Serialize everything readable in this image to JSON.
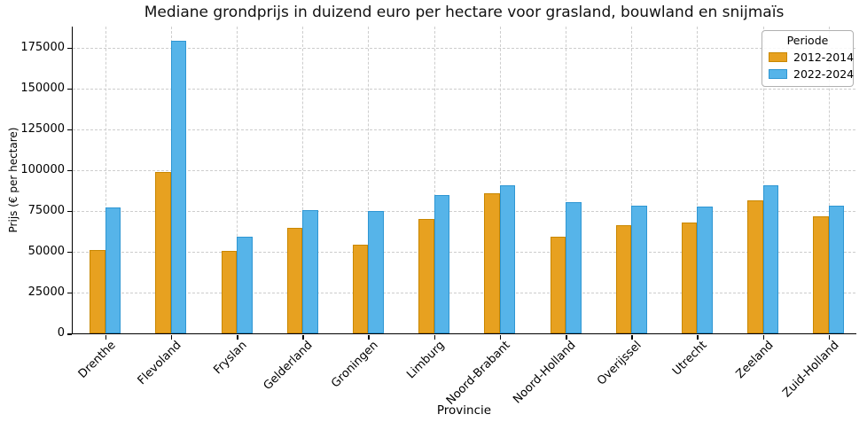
{
  "chart_data": {
    "type": "bar",
    "title": "Mediane grondprijs in duizend euro per hectare voor grasland, bouwland en snijmaïs",
    "xlabel": "Provincie",
    "ylabel": "Prijs (€ per hectare)",
    "categories": [
      "Drenthe",
      "Flevoland",
      "Fryslan",
      "Gelderland",
      "Groningen",
      "Limburg",
      "Noord-Brabant",
      "Noord-Holland",
      "Overijssel",
      "Utrecht",
      "Zeeland",
      "Zuid-Holland"
    ],
    "series": [
      {
        "name": "2012-2014",
        "color": "#E7A120",
        "edge_color": "#C98700",
        "values": [
          51000,
          99000,
          50500,
          64500,
          54500,
          70000,
          86000,
          59500,
          66500,
          68000,
          81500,
          71500
        ]
      },
      {
        "name": "2022-2024",
        "color": "#56B4E9",
        "edge_color": "#2E96D3",
        "values": [
          77000,
          179500,
          59000,
          75500,
          75000,
          85000,
          91000,
          80500,
          78000,
          77500,
          91000,
          78000
        ]
      }
    ],
    "legend": {
      "title": "Periode",
      "position": "upper right"
    },
    "yticks": [
      0,
      25000,
      50000,
      75000,
      100000,
      125000,
      150000,
      175000
    ],
    "ylim": [
      0,
      188000
    ],
    "grid": {
      "axes": "both",
      "style": "dashed",
      "color": "#cdcdcd"
    }
  }
}
